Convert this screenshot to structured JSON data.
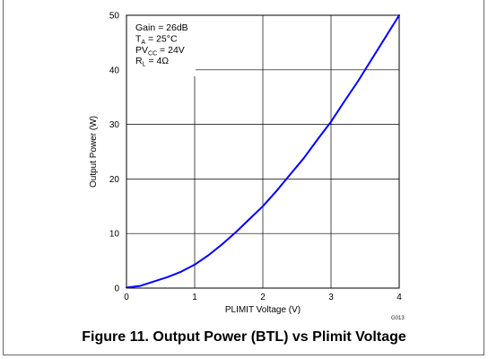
{
  "chart_data": {
    "type": "line",
    "xlabel": "PLIMIT Voltage (V)",
    "ylabel": "Output Power (W)",
    "xlim": [
      0,
      4
    ],
    "ylim": [
      0,
      50
    ],
    "x_ticks": [
      "0",
      "1",
      "2",
      "3",
      "4"
    ],
    "y_ticks": [
      "0",
      "10",
      "20",
      "30",
      "40",
      "50"
    ],
    "grid": true,
    "series": [
      {
        "color": "#0000ff",
        "x": [
          0.0,
          0.2,
          0.4,
          0.6,
          0.8,
          1.0,
          1.2,
          1.4,
          1.6,
          1.8,
          2.0,
          2.2,
          2.4,
          2.6,
          2.8,
          3.0,
          3.2,
          3.4,
          3.6,
          3.8,
          4.0
        ],
        "y": [
          0.1,
          0.4,
          1.2,
          2.0,
          3.0,
          4.3,
          6.0,
          8.0,
          10.2,
          12.6,
          15.0,
          17.8,
          20.8,
          23.8,
          27.2,
          30.5,
          34.3,
          38.0,
          42.0,
          46.0,
          50.0
        ]
      }
    ],
    "annotation": {
      "lines": [
        {
          "text": "Gain = 26dB"
        },
        {
          "main": "T",
          "sub": "A",
          "rest": " = 25°C"
        },
        {
          "main": "PV",
          "sub": "CC",
          "rest": " = 24V"
        },
        {
          "main": "R",
          "sub": "L",
          "rest": " = 4Ω"
        }
      ]
    }
  },
  "caption": "Figure 11. Output Power (BTL) vs Plimit Voltage",
  "figure_code": "G013"
}
